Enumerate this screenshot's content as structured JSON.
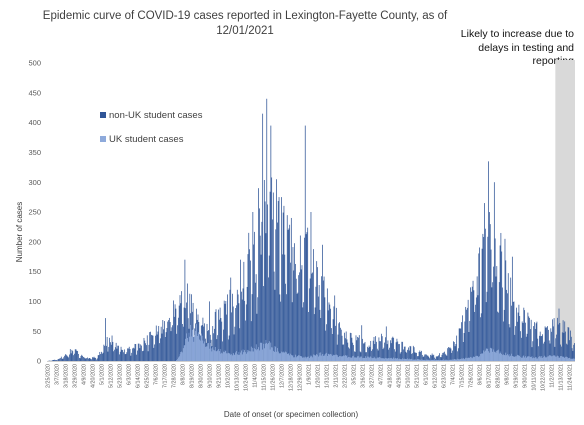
{
  "chart_data": {
    "type": "bar",
    "stacked": true,
    "title": "Epidemic curve of COVID-19 cases reported in Lexington-Fayette County, as of 12/01/2021",
    "annotation": "Likely to increase due to delays in testing and reporting",
    "xlabel": "Date of onset (or specimen collection)",
    "ylabel": "Number of cases",
    "ylim": [
      0,
      500
    ],
    "yticks": [
      0,
      50,
      100,
      150,
      200,
      250,
      300,
      350,
      400,
      450,
      500
    ],
    "grid": false,
    "legend_position": "upper-left",
    "shaded_region": {
      "from": "11/7/2021",
      "to": "11/30/2021"
    },
    "x_start": "2/25/2020",
    "x_end": "11/30/2021",
    "tick_labels": [
      "2/25/2020",
      "3/7/2020",
      "3/18/2020",
      "3/29/2020",
      "4/9/2020",
      "4/20/2020",
      "5/1/2020",
      "5/12/2020",
      "5/23/2020",
      "6/3/2020",
      "6/14/2020",
      "6/25/2020",
      "7/6/2020",
      "7/17/2020",
      "7/28/2020",
      "8/8/2020",
      "8/19/2020",
      "8/30/2020",
      "9/10/2020",
      "9/21/2020",
      "10/2/2020",
      "10/13/2020",
      "10/24/2020",
      "11/4/2020",
      "11/15/2020",
      "11/26/2020",
      "12/7/2020",
      "12/18/2020",
      "12/29/2020",
      "1/9/2021",
      "1/20/2021",
      "1/31/2021",
      "2/11/2021",
      "2/22/2021",
      "3/5/2021",
      "3/16/2021",
      "3/27/2021",
      "4/7/2021",
      "4/18/2021",
      "4/29/2021",
      "5/10/2021",
      "5/21/2021",
      "6/1/2021",
      "6/12/2021",
      "6/23/2021",
      "7/4/2021",
      "7/15/2021",
      "7/26/2021",
      "8/6/2021",
      "8/17/2021",
      "8/28/2021",
      "9/8/2021",
      "9/19/2021",
      "9/30/2021",
      "10/11/2021",
      "10/22/2021",
      "11/2/2021",
      "11/13/2021",
      "11/24/2021"
    ],
    "series": [
      {
        "name": "non-UK student cases",
        "color": "#2f5597",
        "points": [
          [
            "2/25/2020",
            0
          ],
          [
            "3/10/2020",
            3
          ],
          [
            "3/20/2020",
            12
          ],
          [
            "3/28/2020",
            20
          ],
          [
            "4/5/2020",
            9
          ],
          [
            "4/15/2020",
            5
          ],
          [
            "4/25/2020",
            6
          ],
          [
            "5/3/2020",
            20
          ],
          [
            "5/10/2020",
            40
          ],
          [
            "5/20/2020",
            24
          ],
          [
            "6/1/2020",
            18
          ],
          [
            "6/14/2020",
            25
          ],
          [
            "6/28/2020",
            40
          ],
          [
            "7/10/2020",
            55
          ],
          [
            "7/22/2020",
            75
          ],
          [
            "8/1/2020",
            90
          ],
          [
            "8/8/2020",
            95
          ],
          [
            "8/14/2020",
            110
          ],
          [
            "8/20/2020",
            92
          ],
          [
            "8/26/2020",
            70
          ],
          [
            "9/3/2020",
            55
          ],
          [
            "9/12/2020",
            60
          ],
          [
            "9/22/2020",
            75
          ],
          [
            "10/2/2020",
            88
          ],
          [
            "10/12/2020",
            108
          ],
          [
            "10/22/2020",
            135
          ],
          [
            "10/31/2020",
            160
          ],
          [
            "11/6/2020",
            185
          ],
          [
            "11/12/2020",
            225
          ],
          [
            "11/17/2020",
            260
          ],
          [
            "11/22/2020",
            265
          ],
          [
            "11/27/2020",
            240
          ],
          [
            "12/3/2020",
            255
          ],
          [
            "12/9/2020",
            230
          ],
          [
            "12/15/2020",
            205
          ],
          [
            "12/21/2020",
            180
          ],
          [
            "12/27/2020",
            170
          ],
          [
            "1/3/2021",
            200
          ],
          [
            "1/9/2021",
            185
          ],
          [
            "1/16/2021",
            155
          ],
          [
            "1/24/2021",
            125
          ],
          [
            "2/1/2021",
            100
          ],
          [
            "2/8/2021",
            78
          ],
          [
            "2/16/2021",
            62
          ],
          [
            "2/24/2021",
            45
          ],
          [
            "3/4/2021",
            36
          ],
          [
            "3/12/2021",
            35
          ],
          [
            "3/22/2021",
            30
          ],
          [
            "4/2/2021",
            34
          ],
          [
            "4/12/2021",
            38
          ],
          [
            "4/22/2021",
            33
          ],
          [
            "5/2/2021",
            28
          ],
          [
            "5/12/2021",
            24
          ],
          [
            "5/22/2021",
            16
          ],
          [
            "6/1/2021",
            12
          ],
          [
            "6/12/2021",
            9
          ],
          [
            "6/22/2021",
            12
          ],
          [
            "7/2/2021",
            22
          ],
          [
            "7/12/2021",
            45
          ],
          [
            "7/22/2021",
            85
          ],
          [
            "7/31/2021",
            130
          ],
          [
            "8/8/2021",
            165
          ],
          [
            "8/14/2021",
            195
          ],
          [
            "8/20/2021",
            215
          ],
          [
            "8/26/2021",
            190
          ],
          [
            "9/2/2021",
            170
          ],
          [
            "9/9/2021",
            130
          ],
          [
            "9/16/2021",
            100
          ],
          [
            "9/23/2021",
            82
          ],
          [
            "10/1/2021",
            68
          ],
          [
            "10/10/2021",
            57
          ],
          [
            "10/20/2021",
            52
          ],
          [
            "10/30/2021",
            52
          ],
          [
            "11/8/2021",
            60
          ],
          [
            "11/16/2021",
            55
          ],
          [
            "11/23/2021",
            48
          ],
          [
            "11/30/2021",
            30
          ]
        ],
        "peaks": [
          [
            "5/6/2020",
            72
          ],
          [
            "8/11/2020",
            170
          ],
          [
            "9/10/2020",
            100
          ],
          [
            "10/6/2020",
            140
          ],
          [
            "10/18/2020",
            170
          ],
          [
            "10/28/2020",
            215
          ],
          [
            "11/2/2020",
            250
          ],
          [
            "11/9/2020",
            290
          ],
          [
            "11/14/2020",
            415
          ],
          [
            "11/19/2020",
            440
          ],
          [
            "11/24/2020",
            395
          ],
          [
            "12/1/2020",
            305
          ],
          [
            "12/7/2020",
            275
          ],
          [
            "12/19/2020",
            240
          ],
          [
            "1/5/2021",
            395
          ],
          [
            "1/12/2021",
            250
          ],
          [
            "1/26/2021",
            195
          ],
          [
            "2/10/2021",
            110
          ],
          [
            "3/15/2021",
            60
          ],
          [
            "4/14/2021",
            58
          ],
          [
            "8/12/2021",
            265
          ],
          [
            "8/17/2021",
            335
          ],
          [
            "8/24/2021",
            300
          ],
          [
            "9/6/2021",
            205
          ],
          [
            "9/15/2021",
            175
          ],
          [
            "11/11/2021",
            88
          ]
        ]
      },
      {
        "name": "UK student cases",
        "color": "#8eaadb",
        "points": [
          [
            "2/25/2020",
            0
          ],
          [
            "7/31/2020",
            0
          ],
          [
            "8/5/2020",
            10
          ],
          [
            "8/12/2020",
            35
          ],
          [
            "8/18/2020",
            48
          ],
          [
            "8/24/2020",
            52
          ],
          [
            "8/30/2020",
            45
          ],
          [
            "9/6/2020",
            30
          ],
          [
            "9/14/2020",
            20
          ],
          [
            "9/24/2020",
            15
          ],
          [
            "10/8/2020",
            13
          ],
          [
            "10/20/2020",
            15
          ],
          [
            "11/1/2020",
            19
          ],
          [
            "11/12/2020",
            25
          ],
          [
            "11/20/2020",
            30
          ],
          [
            "11/27/2020",
            22
          ],
          [
            "12/8/2020",
            14
          ],
          [
            "12/20/2020",
            9
          ],
          [
            "1/8/2021",
            6
          ],
          [
            "1/25/2021",
            12
          ],
          [
            "2/8/2021",
            9
          ],
          [
            "3/5/2021",
            7
          ],
          [
            "4/1/2021",
            6
          ],
          [
            "5/1/2021",
            4
          ],
          [
            "6/1/2021",
            2
          ],
          [
            "7/1/2021",
            2
          ],
          [
            "7/25/2021",
            5
          ],
          [
            "8/8/2021",
            10
          ],
          [
            "8/15/2021",
            20
          ],
          [
            "8/22/2021",
            18
          ],
          [
            "9/1/2021",
            14
          ],
          [
            "9/10/2021",
            10
          ],
          [
            "9/25/2021",
            8
          ],
          [
            "10/15/2021",
            6
          ],
          [
            "11/1/2021",
            8
          ],
          [
            "11/15/2021",
            7
          ],
          [
            "11/30/2021",
            3
          ]
        ]
      }
    ]
  }
}
